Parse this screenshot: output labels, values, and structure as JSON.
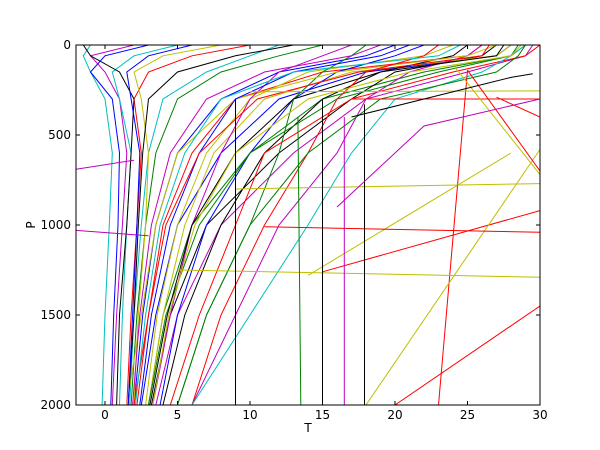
{
  "chart_data": {
    "type": "line",
    "title": "",
    "xlabel": "T",
    "ylabel": "P",
    "xlim": [
      -2,
      30
    ],
    "ylim": [
      2000,
      0
    ],
    "y_inverted": true,
    "grid": false,
    "legend": "none",
    "xticks": [
      "0",
      "5",
      "10",
      "15",
      "20",
      "25",
      "30"
    ],
    "yticks": [
      "0",
      "500",
      "1000",
      "1500",
      "2000"
    ],
    "color_cycle": [
      "#0000ff",
      "#008000",
      "#ff0000",
      "#00bfbf",
      "#bf00bf",
      "#bfbf00",
      "#000000"
    ],
    "p_levels": [
      0,
      60,
      150,
      300,
      600,
      1000,
      1500,
      2000
    ],
    "profiles_T": [
      [
        28,
        27,
        18,
        12,
        8,
        5,
        3.5,
        2.5
      ],
      [
        29,
        28,
        22,
        15,
        10,
        6,
        4,
        3
      ],
      [
        26,
        25,
        15,
        9,
        6,
        4,
        3,
        2.2
      ],
      [
        -1,
        -1.5,
        -1,
        0,
        0.5,
        0.3,
        0,
        -0.2
      ],
      [
        2,
        -1,
        0,
        1,
        1.5,
        1.2,
        0.8,
        0.5
      ],
      [
        24,
        22,
        14,
        10,
        7,
        5,
        3.6,
        2.8
      ],
      [
        27,
        26,
        20,
        17,
        12,
        7,
        4.5,
        3.2
      ],
      [
        20,
        18,
        12,
        8,
        5,
        3.5,
        2.6,
        2
      ],
      [
        15,
        12,
        8,
        5,
        3.5,
        2.8,
        2.2,
        1.8
      ],
      [
        10,
        6,
        3,
        2,
        2.5,
        2.2,
        1.8,
        1.5
      ],
      [
        5,
        2,
        0.5,
        1,
        1.8,
        1.5,
        1.2,
        1
      ],
      [
        29.5,
        29,
        25,
        18,
        13,
        8,
        5,
        3.5
      ],
      [
        28,
        27,
        17,
        11,
        7.5,
        5.5,
        4,
        3
      ],
      [
        25,
        24,
        19,
        15,
        11,
        8,
        5.5,
        4
      ],
      [
        22,
        20,
        16,
        13,
        10,
        7,
        5,
        3.8
      ],
      [
        18,
        17,
        15,
        13,
        12,
        10,
        7,
        5
      ],
      [
        30,
        29,
        24,
        17,
        11,
        9,
        6.5,
        4.5
      ],
      [
        12,
        10,
        7,
        4,
        3,
        2.5,
        2,
        1.7
      ],
      [
        26,
        25,
        21,
        18,
        16,
        12,
        9,
        6
      ],
      [
        27,
        25,
        16,
        9,
        5,
        3.5,
        2.5,
        1.5
      ],
      [
        -1.5,
        -1,
        1,
        2,
        1.8,
        1.5,
        1,
        0.8
      ],
      [
        3,
        0,
        -1,
        0.5,
        1,
        0.9,
        0.6,
        0.4
      ],
      [
        28.5,
        28,
        23,
        16,
        10,
        6.5,
        4.2,
        3
      ],
      [
        23,
        22,
        18,
        16,
        14,
        11,
        8,
        6
      ],
      [
        29,
        28,
        26,
        20,
        17,
        14,
        10,
        6
      ],
      [
        17,
        15,
        12,
        10,
        8,
        6,
        4.5,
        3.3
      ],
      [
        8,
        4,
        2,
        2.5,
        3,
        2.8,
        2.3,
        2
      ],
      [
        27.5,
        27,
        19,
        13,
        9,
        6,
        4.3,
        3.1
      ],
      [
        21,
        19,
        13,
        9,
        6.5,
        4.5,
        3.2,
        2.4
      ],
      [
        29,
        28.5,
        27,
        19,
        14,
        10,
        7,
        5
      ],
      [
        26.5,
        26,
        17.5,
        10.5,
        6.5,
        4.2,
        3,
        2
      ],
      [
        24.5,
        23,
        13,
        8,
        5.5,
        3.8,
        2.8,
        2.1
      ],
      [
        19,
        17,
        11,
        7,
        4.5,
        3.2,
        2.4,
        1.9
      ],
      [
        28.7,
        28,
        21,
        14,
        9,
        6.2,
        4.4,
        3.3
      ],
      [
        13,
        9,
        5,
        3,
        2.6,
        2.3,
        2,
        1.6
      ],
      [
        6,
        3,
        1.5,
        1.8,
        2.4,
        2.2,
        1.9,
        1.6
      ]
    ],
    "outliers": [
      {
        "color": "#ff0000",
        "points": [
          [
            15,
            1260
          ],
          [
            30,
            920
          ]
        ]
      },
      {
        "color": "#bfbf00",
        "points": [
          [
            14,
            1280
          ],
          [
            28,
            600
          ]
        ]
      },
      {
        "color": "#ff0000",
        "points": [
          [
            23,
            2000
          ],
          [
            25,
            140
          ]
        ]
      },
      {
        "color": "#bfbf00",
        "points": [
          [
            18,
            2000
          ],
          [
            30,
            580
          ]
        ]
      },
      {
        "color": "#ff0000",
        "points": [
          [
            20,
            2000
          ],
          [
            30,
            1450
          ]
        ]
      },
      {
        "color": "#bfbf00",
        "points": [
          [
            9,
            800
          ],
          [
            30,
            770
          ]
        ]
      },
      {
        "color": "#bfbf00",
        "points": [
          [
            10,
            260
          ],
          [
            30,
            255
          ]
        ]
      },
      {
        "color": "#ff0000",
        "points": [
          [
            17,
            300
          ],
          [
            30,
            300
          ]
        ]
      },
      {
        "color": "#bf00bf",
        "points": [
          [
            -2,
            690
          ],
          [
            2,
            640
          ]
        ]
      },
      {
        "color": "#bf00bf",
        "points": [
          [
            -2,
            1030
          ],
          [
            3,
            1060
          ]
        ]
      },
      {
        "color": "#bfbf00",
        "points": [
          [
            5,
            1250
          ],
          [
            30,
            1290
          ]
        ]
      },
      {
        "color": "#ff0000",
        "points": [
          [
            11,
            1010
          ],
          [
            30,
            1040
          ]
        ]
      },
      {
        "color": "#ff0000",
        "points": [
          [
            27,
            290
          ],
          [
            30,
            400
          ]
        ]
      },
      {
        "color": "#bfbf00",
        "points": [
          [
            24,
            110
          ],
          [
            30,
            720
          ]
        ]
      },
      {
        "color": "#ff0000",
        "points": [
          [
            25,
            140
          ],
          [
            30,
            700
          ]
        ]
      },
      {
        "color": "#000000",
        "points": [
          [
            15,
            300
          ],
          [
            15,
            2000
          ]
        ]
      },
      {
        "color": "#bf00bf",
        "points": [
          [
            16.5,
            400
          ],
          [
            16.5,
            2000
          ]
        ]
      },
      {
        "color": "#000000",
        "points": [
          [
            17.9,
            330
          ],
          [
            17.9,
            2000
          ]
        ]
      },
      {
        "color": "#008000",
        "points": [
          [
            13.3,
            400
          ],
          [
            13.5,
            2000
          ]
        ]
      },
      {
        "color": "#000000",
        "points": [
          [
            9,
            300
          ],
          [
            9,
            2000
          ]
        ]
      },
      {
        "color": "#000000",
        "points": [
          [
            17,
            400
          ],
          [
            28,
            180
          ],
          [
            29.5,
            160
          ]
        ]
      },
      {
        "color": "#bf00bf",
        "points": [
          [
            16,
            900
          ],
          [
            22,
            450
          ],
          [
            30,
            300
          ]
        ]
      }
    ]
  }
}
